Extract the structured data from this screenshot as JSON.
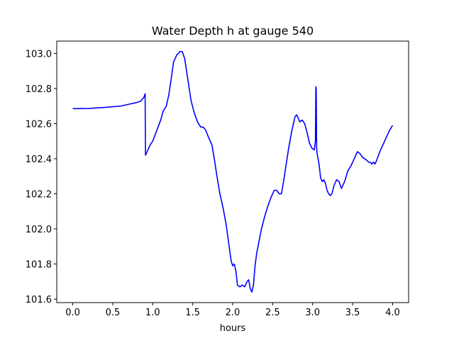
{
  "chart_data": {
    "type": "line",
    "title": "Water Depth h at gauge 540",
    "xlabel": "hours",
    "ylabel": "",
    "xlim": [
      -0.2,
      4.2
    ],
    "ylim": [
      101.58,
      103.07
    ],
    "xticks": [
      0.0,
      0.5,
      1.0,
      1.5,
      2.0,
      2.5,
      3.0,
      3.5,
      4.0
    ],
    "xtick_labels": [
      "0.0",
      "0.5",
      "1.0",
      "1.5",
      "2.0",
      "2.5",
      "3.0",
      "3.5",
      "4.0"
    ],
    "yticks": [
      101.6,
      101.8,
      102.0,
      102.2,
      102.4,
      102.6,
      102.8,
      103.0
    ],
    "ytick_labels": [
      "101.6",
      "101.8",
      "102.0",
      "102.2",
      "102.4",
      "102.6",
      "102.8",
      "103.0"
    ],
    "grid": false,
    "series": [
      {
        "color": "#0000ff",
        "x": [
          0.0,
          0.2,
          0.4,
          0.6,
          0.7,
          0.8,
          0.85,
          0.89,
          0.905,
          0.91,
          0.94,
          0.97,
          1.0,
          1.05,
          1.1,
          1.13,
          1.17,
          1.2,
          1.23,
          1.26,
          1.3,
          1.34,
          1.37,
          1.4,
          1.44,
          1.48,
          1.52,
          1.56,
          1.6,
          1.63,
          1.66,
          1.7,
          1.74,
          1.77,
          1.8,
          1.84,
          1.88,
          1.92,
          1.95,
          1.98,
          2.0,
          2.02,
          2.04,
          2.06,
          2.09,
          2.12,
          2.15,
          2.18,
          2.2,
          2.22,
          2.24,
          2.26,
          2.28,
          2.3,
          2.33,
          2.36,
          2.4,
          2.44,
          2.48,
          2.52,
          2.55,
          2.58,
          2.61,
          2.64,
          2.67,
          2.7,
          2.74,
          2.78,
          2.8,
          2.82,
          2.84,
          2.87,
          2.9,
          2.93,
          2.96,
          2.99,
          3.02,
          3.035,
          3.04,
          3.045,
          3.05,
          3.055,
          3.06,
          3.08,
          3.1,
          3.12,
          3.14,
          3.16,
          3.18,
          3.2,
          3.22,
          3.24,
          3.27,
          3.3,
          3.33,
          3.36,
          3.4,
          3.44,
          3.48,
          3.52,
          3.56,
          3.59,
          3.62,
          3.65,
          3.68,
          3.7,
          3.72,
          3.74,
          3.76,
          3.78,
          3.8,
          3.84,
          3.88,
          3.92,
          3.96,
          4.0
        ],
        "y": [
          102.685,
          102.686,
          102.692,
          102.7,
          102.71,
          102.72,
          102.728,
          102.75,
          102.77,
          102.42,
          102.45,
          102.48,
          102.5,
          102.56,
          102.62,
          102.67,
          102.7,
          102.76,
          102.85,
          102.95,
          102.99,
          103.01,
          103.01,
          102.97,
          102.85,
          102.73,
          102.66,
          102.61,
          102.58,
          102.58,
          102.565,
          102.52,
          102.48,
          102.4,
          102.31,
          102.2,
          102.12,
          102.02,
          101.92,
          101.82,
          101.79,
          101.8,
          101.76,
          101.68,
          101.67,
          101.68,
          101.67,
          101.7,
          101.71,
          101.66,
          101.64,
          101.68,
          101.79,
          101.86,
          101.93,
          102.0,
          102.07,
          102.13,
          102.18,
          102.22,
          102.22,
          102.2,
          102.2,
          102.28,
          102.37,
          102.46,
          102.56,
          102.64,
          102.65,
          102.63,
          102.61,
          102.62,
          102.6,
          102.55,
          102.49,
          102.46,
          102.45,
          102.5,
          102.81,
          102.79,
          102.46,
          102.43,
          102.42,
          102.37,
          102.29,
          102.27,
          102.28,
          102.26,
          102.22,
          102.2,
          102.19,
          102.2,
          102.25,
          102.28,
          102.27,
          102.23,
          102.27,
          102.33,
          102.36,
          102.4,
          102.44,
          102.43,
          102.41,
          102.4,
          102.39,
          102.38,
          102.38,
          102.37,
          102.38,
          102.37,
          102.39,
          102.44,
          102.48,
          102.52,
          102.56,
          102.59
        ]
      }
    ]
  }
}
